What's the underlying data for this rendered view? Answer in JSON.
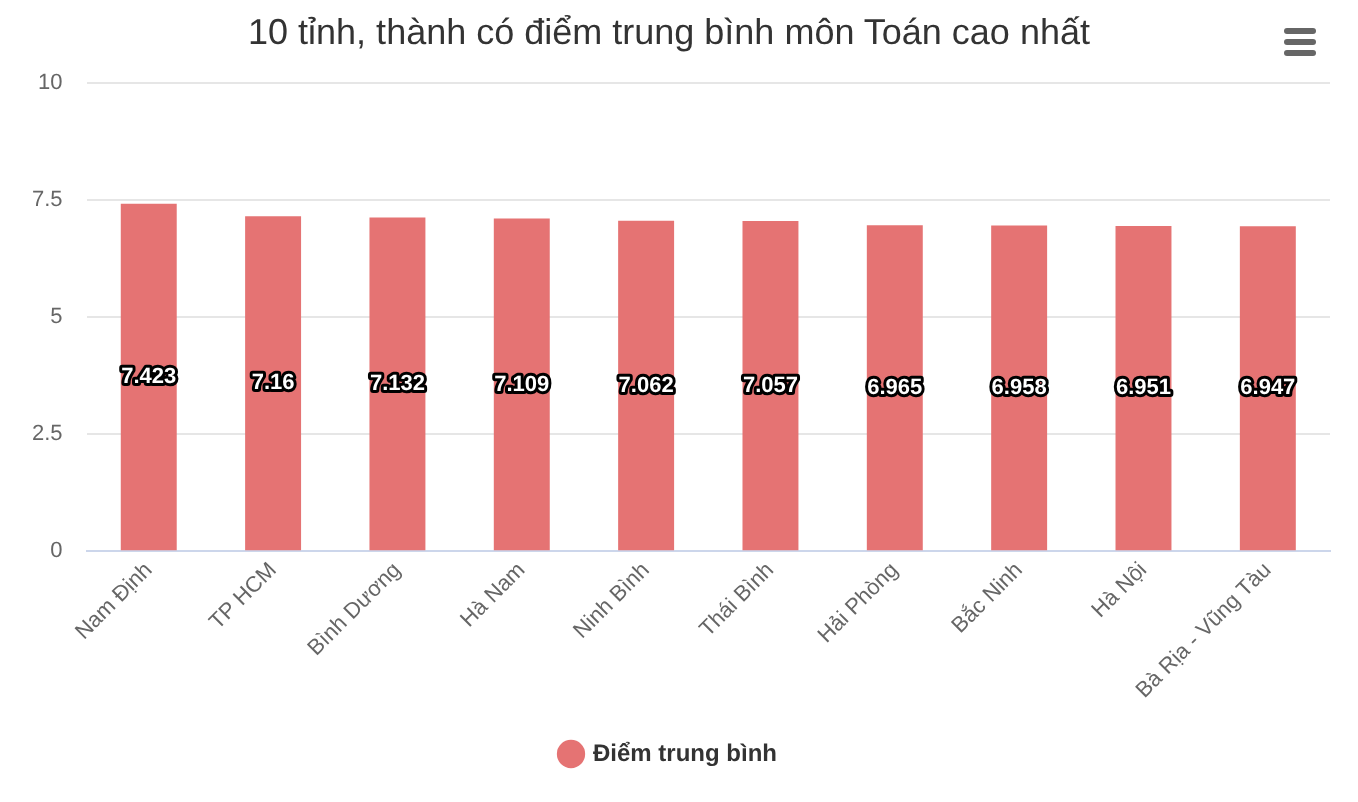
{
  "chart_data": {
    "type": "bar",
    "title": "10 tỉnh, thành có điểm trung bình môn Toán cao nhất",
    "categories": [
      "Nam Định",
      "TP HCM",
      "Bình Dương",
      "Hà Nam",
      "Ninh Bình",
      "Thái Bình",
      "Hải Phòng",
      "Bắc Ninh",
      "Hà Nội",
      "Bà Rịa - Vũng Tàu"
    ],
    "series": [
      {
        "name": "Điểm trung bình",
        "color": "#e57373",
        "values": [
          7.423,
          7.16,
          7.132,
          7.109,
          7.062,
          7.057,
          6.965,
          6.958,
          6.951,
          6.947
        ]
      }
    ],
    "ylim": [
      0,
      10
    ],
    "yticks": [
      0,
      2.5,
      5,
      7.5,
      10
    ],
    "grid": "y",
    "legend": "bottom",
    "data_labels": true
  }
}
